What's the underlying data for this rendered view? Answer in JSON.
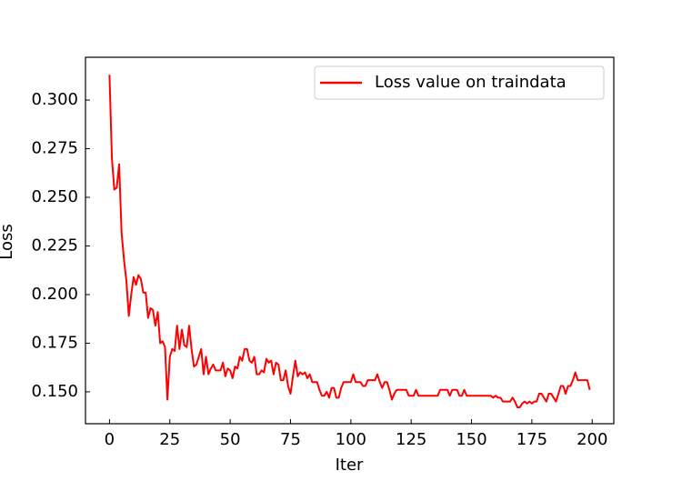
{
  "chart_data": {
    "type": "line",
    "xlabel": "Iter",
    "ylabel": "Loss",
    "x": [
      0,
      1,
      2,
      3,
      4,
      5,
      6,
      7,
      8,
      9,
      10,
      11,
      12,
      13,
      14,
      15,
      16,
      17,
      18,
      19,
      20,
      21,
      22,
      23,
      24,
      25,
      26,
      27,
      28,
      29,
      30,
      31,
      32,
      33,
      34,
      35,
      36,
      37,
      38,
      39,
      40,
      41,
      42,
      43,
      44,
      45,
      46,
      47,
      48,
      49,
      50,
      51,
      52,
      53,
      54,
      55,
      56,
      57,
      58,
      59,
      60,
      61,
      62,
      63,
      64,
      65,
      66,
      67,
      68,
      69,
      70,
      71,
      72,
      73,
      74,
      75,
      76,
      77,
      78,
      79,
      80,
      81,
      82,
      83,
      84,
      85,
      86,
      87,
      88,
      89,
      90,
      91,
      92,
      93,
      94,
      95,
      96,
      97,
      98,
      99,
      100,
      101,
      102,
      103,
      104,
      105,
      106,
      107,
      108,
      109,
      110,
      111,
      112,
      113,
      114,
      115,
      116,
      117,
      118,
      119,
      120,
      121,
      122,
      123,
      124,
      125,
      126,
      127,
      128,
      129,
      130,
      131,
      132,
      133,
      134,
      135,
      136,
      137,
      138,
      139,
      140,
      141,
      142,
      143,
      144,
      145,
      146,
      147,
      148,
      149,
      150,
      151,
      152,
      153,
      154,
      155,
      156,
      157,
      158,
      159,
      160,
      161,
      162,
      163,
      164,
      165,
      166,
      167,
      168,
      169,
      170,
      171,
      172,
      173,
      174,
      175,
      176,
      177,
      178,
      179,
      180,
      181,
      182,
      183,
      184,
      185,
      186,
      187,
      188,
      189,
      190,
      191,
      192,
      193,
      194,
      195,
      196,
      197,
      198,
      199
    ],
    "series": [
      {
        "name": "Loss value on traindata",
        "color": "#ff0000",
        "values": [
          0.313,
          0.27,
          0.254,
          0.255,
          0.267,
          0.232,
          0.218,
          0.207,
          0.189,
          0.2,
          0.209,
          0.205,
          0.21,
          0.208,
          0.201,
          0.201,
          0.188,
          0.193,
          0.192,
          0.184,
          0.191,
          0.175,
          0.176,
          0.173,
          0.146,
          0.168,
          0.172,
          0.171,
          0.184,
          0.172,
          0.182,
          0.174,
          0.173,
          0.184,
          0.172,
          0.163,
          0.164,
          0.168,
          0.172,
          0.159,
          0.168,
          0.159,
          0.162,
          0.164,
          0.161,
          0.161,
          0.161,
          0.165,
          0.158,
          0.162,
          0.161,
          0.157,
          0.163,
          0.162,
          0.168,
          0.166,
          0.172,
          0.172,
          0.166,
          0.165,
          0.168,
          0.159,
          0.159,
          0.161,
          0.16,
          0.167,
          0.165,
          0.166,
          0.159,
          0.165,
          0.164,
          0.156,
          0.156,
          0.161,
          0.153,
          0.149,
          0.158,
          0.166,
          0.158,
          0.16,
          0.159,
          0.16,
          0.157,
          0.159,
          0.155,
          0.155,
          0.155,
          0.151,
          0.148,
          0.148,
          0.15,
          0.147,
          0.152,
          0.152,
          0.147,
          0.147,
          0.152,
          0.155,
          0.155,
          0.155,
          0.155,
          0.159,
          0.155,
          0.155,
          0.155,
          0.153,
          0.153,
          0.156,
          0.156,
          0.156,
          0.156,
          0.159,
          0.155,
          0.152,
          0.155,
          0.155,
          0.151,
          0.146,
          0.149,
          0.151,
          0.151,
          0.151,
          0.151,
          0.151,
          0.148,
          0.148,
          0.148,
          0.151,
          0.148,
          0.148,
          0.148,
          0.148,
          0.148,
          0.148,
          0.148,
          0.148,
          0.148,
          0.151,
          0.151,
          0.151,
          0.151,
          0.148,
          0.151,
          0.151,
          0.151,
          0.148,
          0.148,
          0.151,
          0.148,
          0.148,
          0.148,
          0.148,
          0.148,
          0.148,
          0.148,
          0.148,
          0.148,
          0.148,
          0.148,
          0.147,
          0.148,
          0.147,
          0.147,
          0.145,
          0.145,
          0.145,
          0.145,
          0.147,
          0.145,
          0.142,
          0.142,
          0.144,
          0.145,
          0.144,
          0.145,
          0.144,
          0.145,
          0.145,
          0.149,
          0.149,
          0.147,
          0.145,
          0.149,
          0.149,
          0.147,
          0.145,
          0.149,
          0.153,
          0.153,
          0.149,
          0.153,
          0.153,
          0.156,
          0.16,
          0.156,
          0.156,
          0.156,
          0.156,
          0.156,
          0.151
        ]
      }
    ],
    "xlim": [
      -9.95,
      208.95
    ],
    "xticks": [
      0,
      25,
      50,
      75,
      100,
      125,
      150,
      175,
      200
    ],
    "ylim": [
      0.1336,
      0.322
    ],
    "yticks": [
      {
        "value": 0.15,
        "label": "0.150"
      },
      0.175,
      {
        "value": 0.2,
        "label": "0.200"
      },
      0.225,
      {
        "value": 0.25,
        "label": "0.250"
      },
      0.275,
      {
        "value": 0.3,
        "label": "0.300"
      }
    ],
    "legend": "upper right"
  }
}
